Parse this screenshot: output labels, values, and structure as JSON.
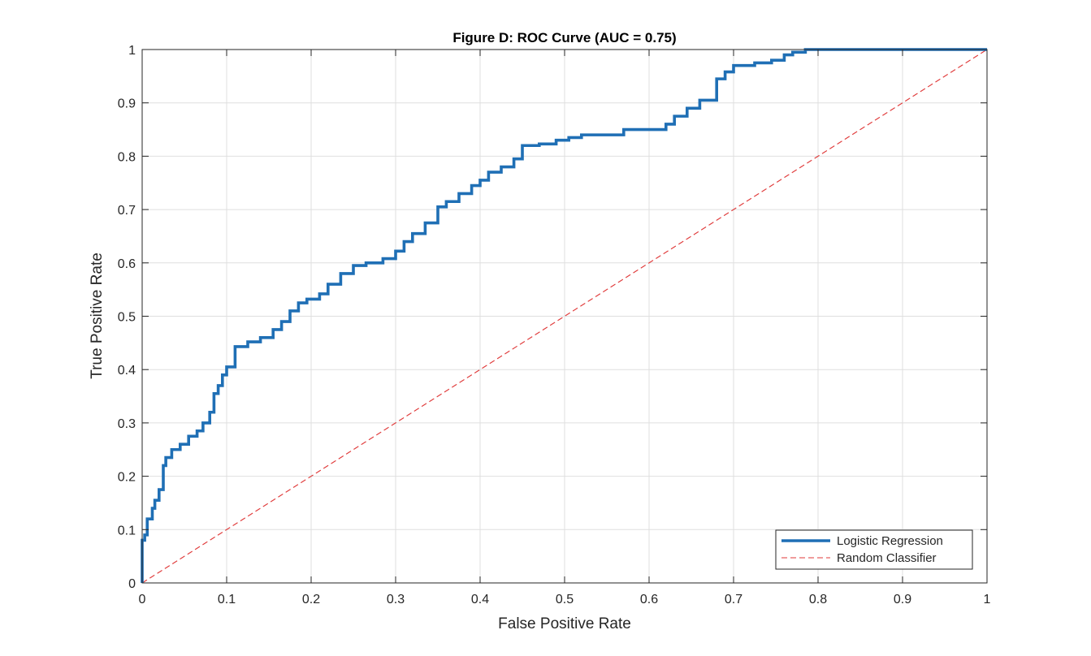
{
  "chart_data": {
    "type": "line",
    "title": "Figure D: ROC Curve (AUC = 0.75)",
    "xlabel": "False Positive Rate",
    "ylabel": "True Positive Rate",
    "xlim": [
      0,
      1
    ],
    "ylim": [
      0,
      1
    ],
    "xticks": [
      0,
      0.1,
      0.2,
      0.3,
      0.4,
      0.5,
      0.6,
      0.7,
      0.8,
      0.9,
      1
    ],
    "yticks": [
      0,
      0.1,
      0.2,
      0.3,
      0.4,
      0.5,
      0.6,
      0.7,
      0.8,
      0.9,
      1
    ],
    "xtick_labels": [
      "0",
      "0.1",
      "0.2",
      "0.3",
      "0.4",
      "0.5",
      "0.6",
      "0.7",
      "0.8",
      "0.9",
      "1"
    ],
    "ytick_labels": [
      "0",
      "0.1",
      "0.2",
      "0.3",
      "0.4",
      "0.5",
      "0.6",
      "0.7",
      "0.8",
      "0.9",
      "1"
    ],
    "grid": true,
    "legend_position": "bottom-right",
    "series": [
      {
        "name": "Logistic Regression",
        "color": "#1f6fb5",
        "style": "solid",
        "x": [
          0,
          0,
          0.003,
          0.003,
          0.006,
          0.006,
          0.012,
          0.012,
          0.015,
          0.015,
          0.02,
          0.02,
          0.025,
          0.025,
          0.028,
          0.028,
          0.035,
          0.035,
          0.045,
          0.045,
          0.055,
          0.055,
          0.065,
          0.065,
          0.072,
          0.072,
          0.08,
          0.08,
          0.085,
          0.085,
          0.09,
          0.09,
          0.095,
          0.095,
          0.1,
          0.1,
          0.11,
          0.11,
          0.125,
          0.125,
          0.14,
          0.14,
          0.155,
          0.155,
          0.165,
          0.165,
          0.175,
          0.175,
          0.185,
          0.185,
          0.195,
          0.195,
          0.21,
          0.21,
          0.22,
          0.22,
          0.235,
          0.235,
          0.25,
          0.25,
          0.265,
          0.265,
          0.285,
          0.285,
          0.3,
          0.3,
          0.31,
          0.31,
          0.32,
          0.32,
          0.335,
          0.335,
          0.35,
          0.35,
          0.36,
          0.36,
          0.375,
          0.375,
          0.39,
          0.39,
          0.4,
          0.4,
          0.41,
          0.41,
          0.425,
          0.425,
          0.44,
          0.44,
          0.45,
          0.45,
          0.47,
          0.47,
          0.49,
          0.49,
          0.505,
          0.505,
          0.52,
          0.52,
          0.545,
          0.545,
          0.57,
          0.57,
          0.6,
          0.6,
          0.62,
          0.62,
          0.63,
          0.63,
          0.645,
          0.645,
          0.66,
          0.66,
          0.68,
          0.68,
          0.69,
          0.69,
          0.7,
          0.7,
          0.725,
          0.725,
          0.745,
          0.745,
          0.76,
          0.76,
          0.77,
          0.77,
          0.785,
          0.785,
          0.8,
          1
        ],
        "y": [
          0,
          0.08,
          0.08,
          0.09,
          0.09,
          0.12,
          0.12,
          0.14,
          0.14,
          0.155,
          0.155,
          0.175,
          0.175,
          0.22,
          0.22,
          0.235,
          0.235,
          0.25,
          0.25,
          0.26,
          0.26,
          0.275,
          0.275,
          0.285,
          0.285,
          0.3,
          0.3,
          0.32,
          0.32,
          0.355,
          0.355,
          0.37,
          0.37,
          0.39,
          0.39,
          0.405,
          0.405,
          0.443,
          0.443,
          0.452,
          0.452,
          0.46,
          0.46,
          0.475,
          0.475,
          0.49,
          0.49,
          0.51,
          0.51,
          0.525,
          0.525,
          0.532,
          0.532,
          0.542,
          0.542,
          0.56,
          0.56,
          0.58,
          0.58,
          0.595,
          0.595,
          0.6,
          0.6,
          0.608,
          0.608,
          0.622,
          0.622,
          0.64,
          0.64,
          0.655,
          0.655,
          0.675,
          0.675,
          0.705,
          0.705,
          0.715,
          0.715,
          0.73,
          0.73,
          0.745,
          0.745,
          0.755,
          0.755,
          0.77,
          0.77,
          0.78,
          0.78,
          0.795,
          0.795,
          0.82,
          0.82,
          0.823,
          0.823,
          0.83,
          0.83,
          0.835,
          0.835,
          0.84,
          0.84,
          0.84,
          0.84,
          0.85,
          0.85,
          0.85,
          0.85,
          0.86,
          0.86,
          0.875,
          0.875,
          0.89,
          0.89,
          0.905,
          0.905,
          0.945,
          0.945,
          0.958,
          0.958,
          0.97,
          0.97,
          0.975,
          0.975,
          0.98,
          0.98,
          0.99,
          0.99,
          0.995,
          0.995,
          1,
          1,
          1
        ]
      },
      {
        "name": "Random Classifier",
        "color": "#e03a3a",
        "style": "dashed",
        "x": [
          0,
          1
        ],
        "y": [
          0,
          1
        ]
      }
    ]
  }
}
